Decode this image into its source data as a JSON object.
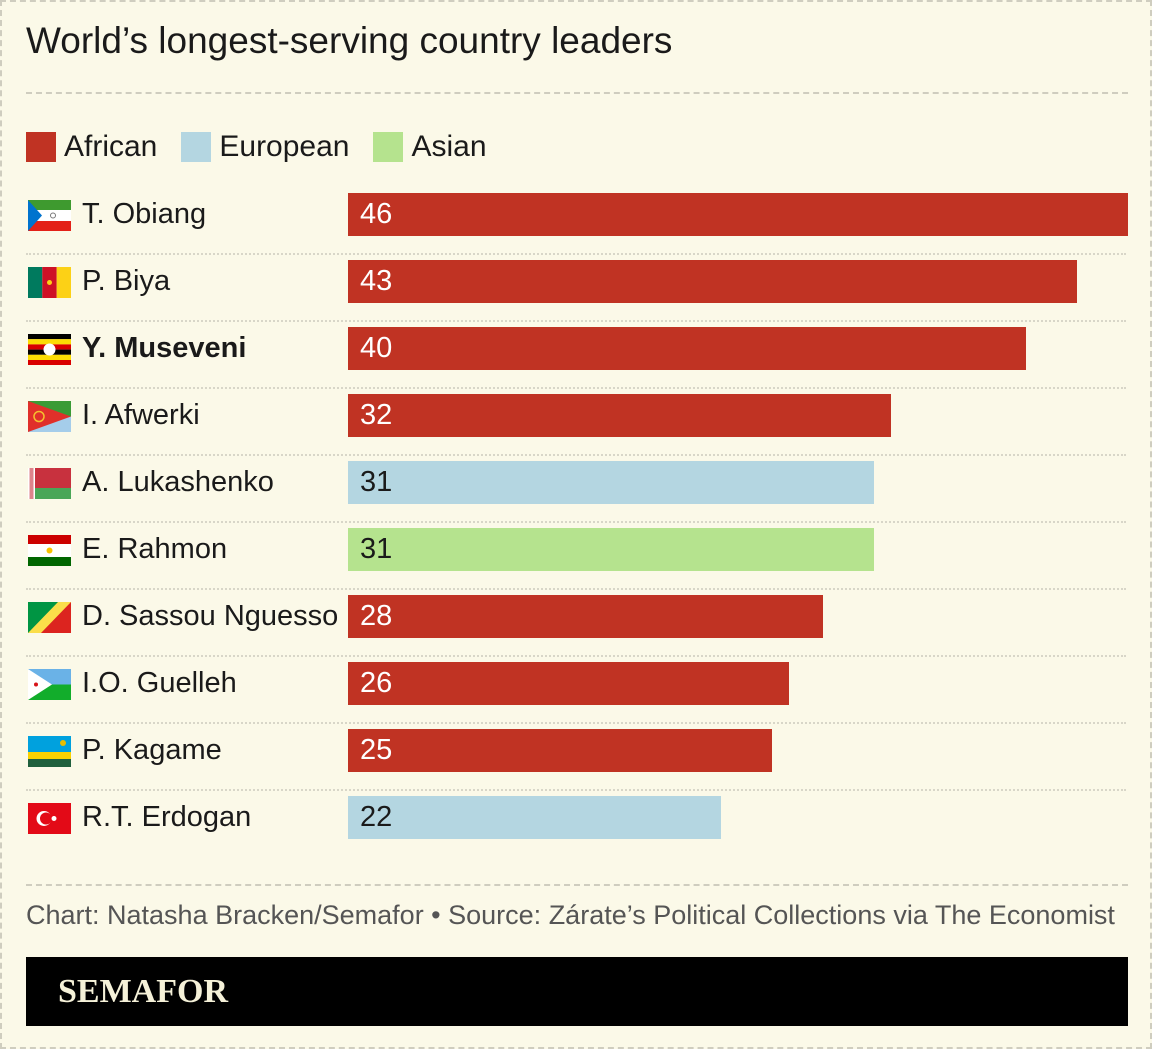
{
  "chart_data": {
    "type": "bar",
    "title": "World’s longest-serving country leaders",
    "legend": [
      {
        "name": "African",
        "color": "#c03323"
      },
      {
        "name": "European",
        "color": "#b4d6e1"
      },
      {
        "name": "Asian",
        "color": "#b5e38e"
      }
    ],
    "legend_position": "top-left",
    "categories": [
      "T. Obiang",
      "P. Biya",
      "Y. Museveni",
      "I. Afwerki",
      "A. Lukashenko",
      "E. Rahmon",
      "D. Sassou Nguesso",
      "I.O. Guelleh",
      "P. Kagame",
      "R.T. Erdogan"
    ],
    "values": [
      46,
      43,
      40,
      32,
      31,
      31,
      28,
      26,
      25,
      22
    ],
    "groups": [
      "African",
      "African",
      "African",
      "African",
      "European",
      "Asian",
      "African",
      "African",
      "African",
      "European"
    ],
    "flags": [
      "equatorial-guinea",
      "cameroon",
      "uganda",
      "eritrea",
      "belarus",
      "tajikistan",
      "congo",
      "djibouti",
      "rwanda",
      "turkey"
    ],
    "highlighted": "Y. Museveni",
    "xlim": [
      0,
      46
    ],
    "xlabel": "",
    "ylabel": ""
  },
  "source": "Chart: Natasha Bracken/Semafor • Source: Zárate’s Political Collections via The Economist",
  "brand": "SEMAFOR"
}
